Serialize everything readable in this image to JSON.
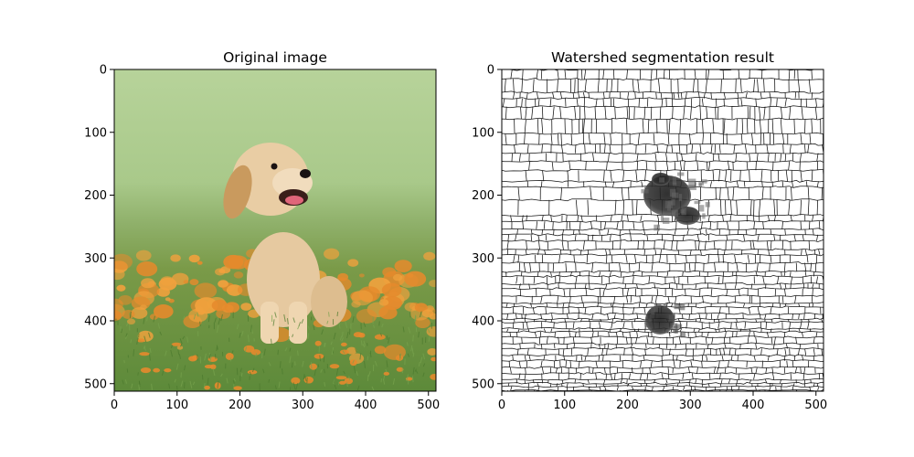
{
  "chart_data": [
    {
      "type": "image",
      "title": "Original image",
      "xlabel": "",
      "ylabel": "",
      "xlim": [
        0,
        512
      ],
      "ylim": [
        512,
        0
      ],
      "x_ticks": [
        0,
        100,
        200,
        300,
        400,
        500
      ],
      "y_ticks": [
        0,
        100,
        200,
        300,
        400,
        500
      ],
      "grid": false,
      "content": "photo",
      "colors": {
        "sky": "#a9c98a",
        "grass": "#5d8a3a",
        "flowers": "#e58a2c",
        "dog": "#e6c9a0"
      }
    },
    {
      "type": "image",
      "title": "Watershed segmentation result",
      "xlabel": "",
      "ylabel": "",
      "xlim": [
        0,
        512
      ],
      "ylim": [
        512,
        0
      ],
      "x_ticks": [
        0,
        100,
        200,
        300,
        400,
        500
      ],
      "y_ticks": [
        0,
        100,
        200,
        300,
        400,
        500
      ],
      "grid": false,
      "content": "segmentation-boundaries",
      "colors": {
        "background": "#ffffff",
        "boundary": "#111111",
        "dark-region": "#222222"
      }
    }
  ]
}
